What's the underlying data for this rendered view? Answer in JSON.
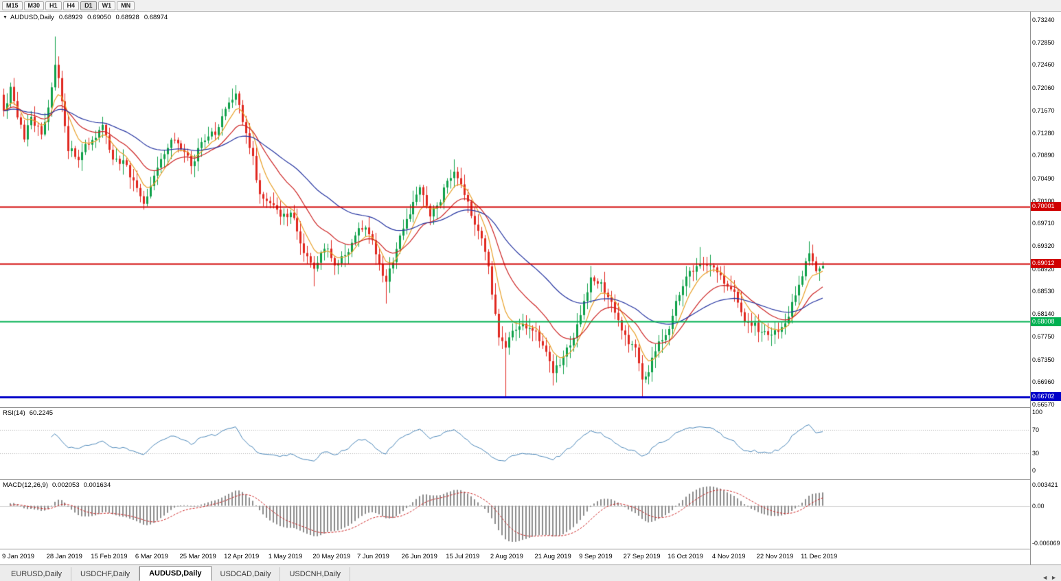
{
  "toolbar": {
    "timeframes": [
      "M15",
      "M30",
      "H1",
      "H4",
      "D1",
      "W1",
      "MN"
    ],
    "active": "D1"
  },
  "title": {
    "collapse_icon": "▼",
    "symbol": "AUDUSD,Daily",
    "open": "0.68929",
    "high": "0.69050",
    "low": "0.68928",
    "close": "0.68974"
  },
  "tabs": [
    {
      "label": "EURUSD,Daily",
      "active": false
    },
    {
      "label": "USDCHF,Daily",
      "active": false
    },
    {
      "label": "AUDUSD,Daily",
      "active": true
    },
    {
      "label": "USDCAD,Daily",
      "active": false
    },
    {
      "label": "USDCNH,Daily",
      "active": false
    }
  ],
  "tab_scroll": {
    "left": "◄",
    "right": "►"
  },
  "chart_data": {
    "type": "candlestick",
    "symbol": "AUDUSD",
    "timeframe": "Daily",
    "current_ohlc": {
      "o": 0.68929,
      "h": 0.6905,
      "l": 0.68928,
      "c": 0.68974
    },
    "price_axis_labels": [
      "0.73240",
      "0.72850",
      "0.72460",
      "0.72060",
      "0.71670",
      "0.71280",
      "0.70890",
      "0.70490",
      "0.70100",
      "0.69710",
      "0.69320",
      "0.68920",
      "0.68530",
      "0.68140",
      "0.67750",
      "0.67350",
      "0.66960",
      "0.66570"
    ],
    "price_scale": {
      "top": 0.73382,
      "bottom": 0.66523
    },
    "horizontal_lines": [
      {
        "value": 0.70001,
        "label": "0.70001",
        "color": "#d00000",
        "width": 2
      },
      {
        "value": 0.69012,
        "label": "0.69012",
        "color": "#d00000",
        "width": 2
      },
      {
        "value": 0.68008,
        "label": "0.68008",
        "color": "#00b050",
        "width": 2
      },
      {
        "value": 0.66702,
        "label": "0.66702",
        "color": "#0000c8",
        "width": 3
      }
    ],
    "time_axis": [
      {
        "t": "9 Jan 2019",
        "i": 0
      },
      {
        "t": "28 Jan 2019",
        "i": 13
      },
      {
        "t": "15 Feb 2019",
        "i": 26
      },
      {
        "t": "6 Mar 2019",
        "i": 39
      },
      {
        "t": "25 Mar 2019",
        "i": 52
      },
      {
        "t": "12 Apr 2019",
        "i": 65
      },
      {
        "t": "1 May 2019",
        "i": 78
      },
      {
        "t": "20 May 2019",
        "i": 91
      },
      {
        "t": "7 Jun 2019",
        "i": 104
      },
      {
        "t": "26 Jun 2019",
        "i": 117
      },
      {
        "t": "15 Jul 2019",
        "i": 130
      },
      {
        "t": "2 Aug 2019",
        "i": 143
      },
      {
        "t": "21 Aug 2019",
        "i": 156
      },
      {
        "t": "9 Sep 2019",
        "i": 169
      },
      {
        "t": "27 Sep 2019",
        "i": 182
      },
      {
        "t": "16 Oct 2019",
        "i": 195
      },
      {
        "t": "4 Nov 2019",
        "i": 208
      },
      {
        "t": "22 Nov 2019",
        "i": 221
      },
      {
        "t": "11 Dec 2019",
        "i": 234
      }
    ],
    "num_candles": 241,
    "price_anchors": [
      [
        0,
        0.7165
      ],
      [
        2,
        0.7205
      ],
      [
        4,
        0.715
      ],
      [
        6,
        0.712
      ],
      [
        8,
        0.716
      ],
      [
        11,
        0.7125
      ],
      [
        13,
        0.7165
      ],
      [
        15,
        0.7255
      ],
      [
        16,
        0.722
      ],
      [
        19,
        0.7105
      ],
      [
        22,
        0.7085
      ],
      [
        26,
        0.7115
      ],
      [
        29,
        0.715
      ],
      [
        32,
        0.7085
      ],
      [
        36,
        0.7075
      ],
      [
        39,
        0.703
      ],
      [
        41,
        0.7008
      ],
      [
        45,
        0.7075
      ],
      [
        49,
        0.712
      ],
      [
        52,
        0.71
      ],
      [
        55,
        0.7075
      ],
      [
        58,
        0.711
      ],
      [
        62,
        0.7125
      ],
      [
        65,
        0.7165
      ],
      [
        68,
        0.7185
      ],
      [
        70,
        0.7145
      ],
      [
        73,
        0.709
      ],
      [
        75,
        0.702
      ],
      [
        78,
        0.7005
      ],
      [
        81,
        0.6988
      ],
      [
        84,
        0.6992
      ],
      [
        87,
        0.6945
      ],
      [
        91,
        0.6892
      ],
      [
        94,
        0.6925
      ],
      [
        97,
        0.6905
      ],
      [
        101,
        0.693
      ],
      [
        104,
        0.6958
      ],
      [
        106,
        0.6972
      ],
      [
        109,
        0.692
      ],
      [
        112,
        0.6875
      ],
      [
        115,
        0.6925
      ],
      [
        117,
        0.6958
      ],
      [
        120,
        0.7
      ],
      [
        122,
        0.7035
      ],
      [
        125,
        0.6988
      ],
      [
        128,
        0.7012
      ],
      [
        130,
        0.7045
      ],
      [
        132,
        0.7062
      ],
      [
        134,
        0.704
      ],
      [
        137,
        0.6985
      ],
      [
        140,
        0.6945
      ],
      [
        142,
        0.6898
      ],
      [
        143,
        0.6852
      ],
      [
        145,
        0.6772
      ],
      [
        147,
        0.6755
      ],
      [
        150,
        0.6792
      ],
      [
        153,
        0.6788
      ],
      [
        156,
        0.6778
      ],
      [
        159,
        0.6758
      ],
      [
        161,
        0.6722
      ],
      [
        163,
        0.6735
      ],
      [
        166,
        0.6762
      ],
      [
        169,
        0.6815
      ],
      [
        172,
        0.6872
      ],
      [
        175,
        0.6862
      ],
      [
        178,
        0.684
      ],
      [
        181,
        0.6792
      ],
      [
        183,
        0.6768
      ],
      [
        185,
        0.6748
      ],
      [
        187,
        0.6702
      ],
      [
        189,
        0.6722
      ],
      [
        192,
        0.6762
      ],
      [
        195,
        0.6792
      ],
      [
        198,
        0.6852
      ],
      [
        201,
        0.6882
      ],
      [
        204,
        0.6895
      ],
      [
        206,
        0.6902
      ],
      [
        208,
        0.6888
      ],
      [
        211,
        0.6862
      ],
      [
        214,
        0.684
      ],
      [
        217,
        0.6802
      ],
      [
        220,
        0.6792
      ],
      [
        222,
        0.6782
      ],
      [
        224,
        0.6772
      ],
      [
        227,
        0.6782
      ],
      [
        230,
        0.6802
      ],
      [
        232,
        0.6848
      ],
      [
        234,
        0.6872
      ],
      [
        236,
        0.6918
      ],
      [
        238,
        0.6892
      ],
      [
        240,
        0.68974
      ]
    ],
    "spike_highs": [
      [
        15,
        0.7295
      ],
      [
        68,
        0.7206
      ],
      [
        132,
        0.7082
      ],
      [
        204,
        0.693
      ],
      [
        236,
        0.694
      ]
    ],
    "spike_lows": [
      [
        91,
        0.6862
      ],
      [
        112,
        0.6832
      ],
      [
        147,
        0.66702
      ],
      [
        161,
        0.669
      ],
      [
        187,
        0.66702
      ]
    ],
    "candle_colors": {
      "up": "#0fa14a",
      "down": "#e02820"
    },
    "indicators": {
      "rsi": {
        "name": "RSI(14)",
        "period": 14,
        "current": "60.2245",
        "color": "#4a86b8",
        "levels": [
          70,
          30
        ],
        "axis": [
          {
            "v": 100,
            "t": "100"
          },
          {
            "v": 70,
            "t": "70"
          },
          {
            "v": 30,
            "t": "30"
          },
          {
            "v": 0,
            "t": "0"
          }
        ]
      },
      "macd": {
        "name": "MACD(12,26,9)",
        "current_main": "0.002053",
        "current_signal": "0.001634",
        "histogram_color": "#8c8c8c",
        "signal_color": "#cc2222",
        "scale": {
          "top": 0.0042,
          "bottom": -0.007
        },
        "axis": [
          {
            "v": 0.003421,
            "t": "0.003421"
          },
          {
            "v": 0,
            "t": "0.00"
          },
          {
            "v": -0.006069,
            "t": "-0.006069"
          }
        ]
      },
      "moving_averages": [
        {
          "period": 7,
          "color": "#e8a028"
        },
        {
          "period": 18,
          "color": "#cc2222"
        },
        {
          "period": 45,
          "color": "#2433a0"
        }
      ]
    }
  }
}
